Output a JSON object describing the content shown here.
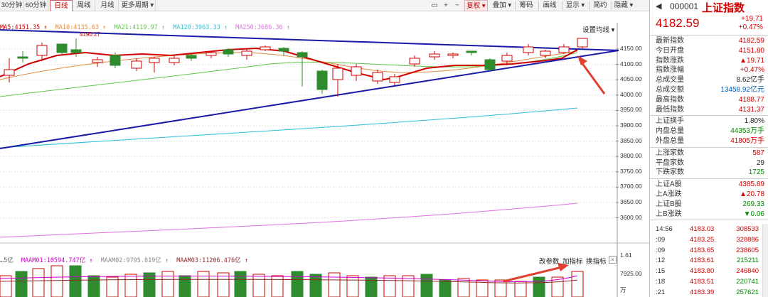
{
  "toolbar": {
    "tabs": [
      "30分钟",
      "60分钟",
      "日线",
      "周线",
      "月线",
      "更多周期 ▾"
    ],
    "active_tab": "日线",
    "tools": [
      "▭",
      "+",
      "−",
      "复权 ▾",
      "叠加 ▾",
      "筹码",
      "画线",
      "显示 ▾",
      "简约",
      "隐藏 ▾"
    ]
  },
  "chart": {
    "ma_legend": [
      {
        "text": "MA5:4151.35 ↑",
        "color": "#cc0000"
      },
      {
        "text": "MA10:4135.63 ↑",
        "color": "#e08a3c"
      },
      {
        "text": "MA21:4119.97 ↑",
        "color": "#5ec843"
      },
      {
        "text": "MA120:3963.33 ↑",
        "color": "#2bc0d8"
      },
      {
        "text": "MA250:3686.36 ↑",
        "color": "#e070e0"
      }
    ],
    "settings_label": "设置均线 ▾",
    "high_marker": "4190.27",
    "y_ticks": [
      "4150.00",
      "4100.00",
      "4050.00",
      "4000.00",
      "3950.00",
      "3900.00",
      "3850.00",
      "3800.00",
      "3750.00",
      "3700.00",
      "3650.00",
      "3600.00"
    ],
    "vol_legend": [
      {
        "text": "…5亿",
        "color": "#555555"
      },
      {
        "text": "MAAM01:10594.747亿 ↑",
        "color": "#cc00cc"
      },
      {
        "text": "MAAM02:9795.819亿 ↑",
        "color": "#888888"
      },
      {
        "text": "MAAM03:11206.476亿 ↑",
        "color": "#8b2a2a"
      }
    ],
    "indicator_buttons": [
      "改参数",
      "加指标",
      "换指标"
    ],
    "close_label": "×",
    "vol_ticks": [
      "1.61",
      "7925.00",
      "万"
    ],
    "colors": {
      "up": "#d20000",
      "down": "#2e8b2e",
      "trend": "#1a1aa8",
      "annotation": "#e04030"
    }
  },
  "panel": {
    "nav_icon": "◀",
    "code": "000001",
    "name": "上证指数",
    "price": "4182.59",
    "change": "+19.71",
    "change_pct": "+0.47%",
    "stats": [
      {
        "label": "最新指数",
        "value": "4182.59",
        "color": "red"
      },
      {
        "label": "今日开盘",
        "value": "4151.80",
        "color": "red"
      },
      {
        "label": "指数涨跌",
        "value": "▲19.71",
        "color": "red"
      },
      {
        "label": "指数涨幅",
        "value": "+0.47%",
        "color": "red"
      },
      {
        "label": "总成交量",
        "value": "8.62亿手",
        "color": "black"
      },
      {
        "label": "总成交额",
        "value": "13458.92亿元",
        "color": "blue"
      },
      {
        "label": "最高指数",
        "value": "4188.77",
        "color": "red"
      },
      {
        "label": "最低指数",
        "value": "4131.37",
        "color": "red"
      }
    ],
    "stats2": [
      {
        "label": "上证换手",
        "value": "1.80%",
        "color": "black"
      },
      {
        "label": "内盘总量",
        "value": "44353万手",
        "color": "green"
      },
      {
        "label": "外盘总量",
        "value": "41805万手",
        "color": "red"
      }
    ],
    "stats3": [
      {
        "label": "上涨家数",
        "value": "587",
        "color": "red"
      },
      {
        "label": "平盘家数",
        "value": "29",
        "color": "black"
      },
      {
        "label": "下跌家数",
        "value": "1725",
        "color": "green"
      }
    ],
    "stats4": [
      {
        "label": "上证A股",
        "value": "4385.89",
        "color": "red"
      },
      {
        "label": "上A涨跌",
        "value": "▲20.78",
        "color": "red"
      },
      {
        "label": "上证B股",
        "value": "269.33",
        "color": "green"
      },
      {
        "label": "上B涨跌",
        "value": "▼0.06",
        "color": "green"
      }
    ],
    "ticks": [
      {
        "time": "14:56",
        "price": "4183.03",
        "vol": "308533",
        "dir": "up"
      },
      {
        "time": ":09",
        "price": "4183.25",
        "vol": "328886",
        "dir": "up"
      },
      {
        "time": ":09",
        "price": "4183.65",
        "vol": "238605",
        "dir": "up"
      },
      {
        "time": ":12",
        "price": "4183.61",
        "vol": "215211",
        "dir": "down"
      },
      {
        "time": ":15",
        "price": "4183.80",
        "vol": "246840",
        "dir": "up"
      },
      {
        "time": ":18",
        "price": "4183.51",
        "vol": "220741",
        "dir": "down"
      },
      {
        "time": ":21",
        "price": "4183.39",
        "vol": "257621",
        "dir": "down"
      }
    ]
  }
}
